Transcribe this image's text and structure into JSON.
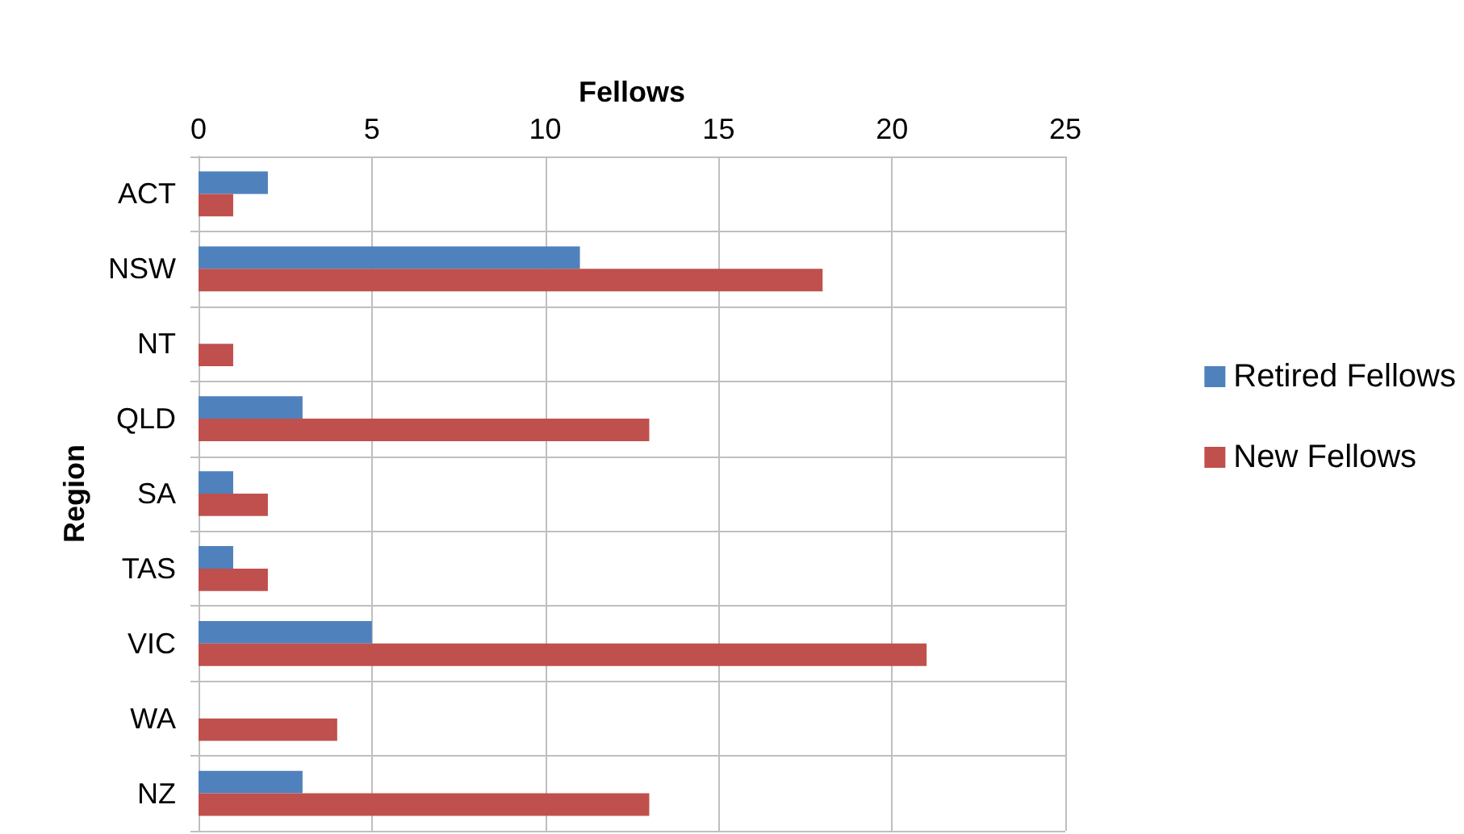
{
  "chart_data": {
    "type": "bar",
    "orientation": "horizontal",
    "xlabel": "Fellows",
    "ylabel": "Region",
    "categories": [
      "ACT",
      "NSW",
      "NT",
      "QLD",
      "SA",
      "TAS",
      "VIC",
      "WA",
      "NZ"
    ],
    "series": [
      {
        "name": "Retired Fellows",
        "color": "#4f81bd",
        "values": [
          2,
          11,
          0,
          3,
          1,
          1,
          5,
          0,
          3
        ]
      },
      {
        "name": "New Fellows",
        "color": "#c0504d",
        "values": [
          1,
          18,
          1,
          13,
          2,
          2,
          21,
          4,
          13
        ]
      }
    ],
    "xlim": [
      0,
      25
    ],
    "xticks": [
      0,
      5,
      10,
      15,
      20,
      25
    ],
    "grid": true,
    "legend": "right"
  }
}
